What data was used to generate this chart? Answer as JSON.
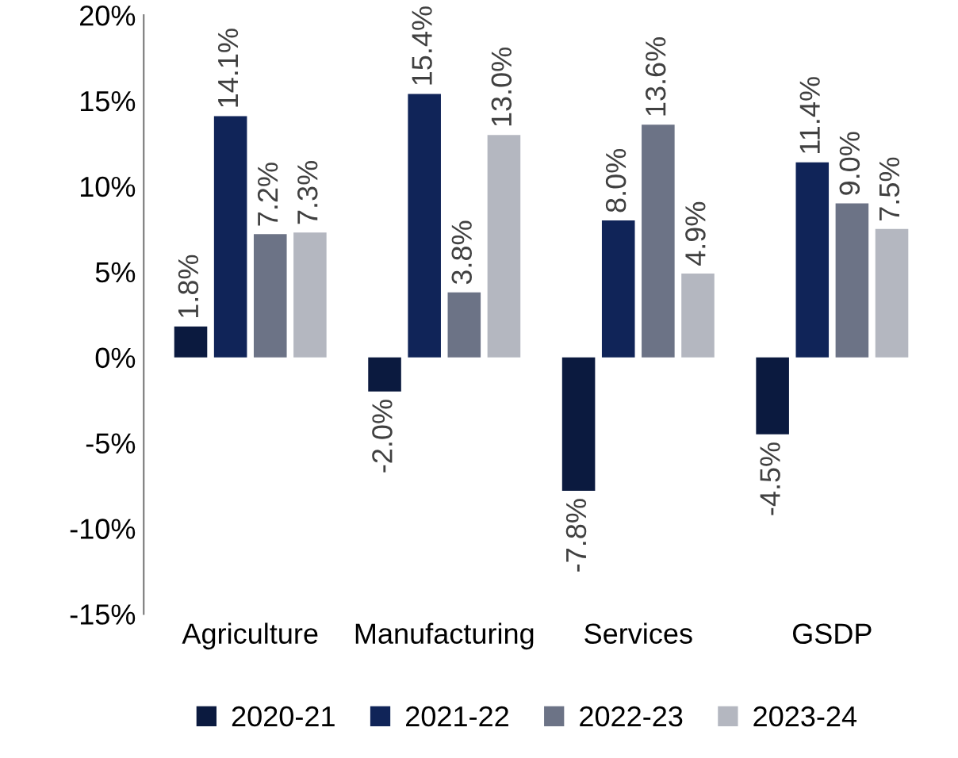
{
  "chart_data": {
    "type": "bar",
    "categories": [
      "Agriculture",
      "Manufacturing",
      "Services",
      "GSDP"
    ],
    "series": [
      {
        "name": "2020-21",
        "color": "#0b1a3f",
        "values": [
          1.8,
          -2.0,
          -7.8,
          -4.5
        ],
        "value_labels": [
          "1.8%",
          "-2.0%",
          "-7.8%",
          "-4.5%"
        ]
      },
      {
        "name": "2021-22",
        "color": "#102458",
        "values": [
          14.1,
          15.4,
          8.0,
          11.4
        ],
        "value_labels": [
          "14.1%",
          "15.4%",
          "8.0%",
          "11.4%"
        ]
      },
      {
        "name": "2022-23",
        "color": "#6c7386",
        "values": [
          7.2,
          3.8,
          13.6,
          9.0
        ],
        "value_labels": [
          "7.2%",
          "3.8%",
          "13.6%",
          "9.0%"
        ]
      },
      {
        "name": "2023-24",
        "color": "#b4b7c0",
        "values": [
          7.3,
          13.0,
          4.9,
          7.5
        ],
        "value_labels": [
          "7.3%",
          "13.0%",
          "4.9%",
          "7.5%"
        ]
      }
    ],
    "ylim": [
      -15,
      20
    ],
    "yticks": [
      {
        "value": -15,
        "label": "-15%"
      },
      {
        "value": -10,
        "label": "-10%"
      },
      {
        "value": -5,
        "label": "-5%"
      },
      {
        "value": 0,
        "label": "0%"
      },
      {
        "value": 5,
        "label": "5%"
      },
      {
        "value": 10,
        "label": "10%"
      },
      {
        "value": 15,
        "label": "15%"
      },
      {
        "value": 20,
        "label": "20%"
      }
    ],
    "grid": false,
    "legend": "bottom"
  }
}
